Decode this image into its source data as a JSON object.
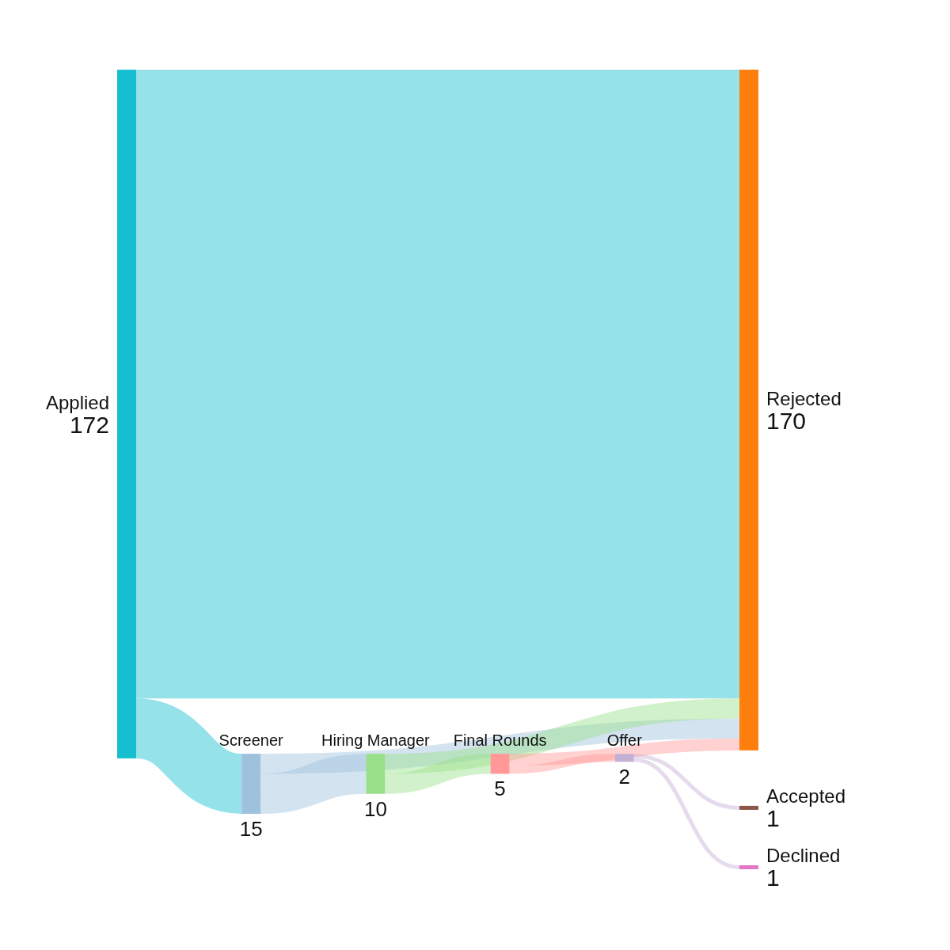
{
  "chart_data": {
    "type": "other",
    "categories": [
      "Applied",
      "Screener",
      "Hiring Manager",
      "Final Rounds",
      "Offer",
      "Accepted",
      "Declined",
      "Rejected"
    ],
    "values": [
      172,
      15,
      10,
      5,
      2,
      1,
      1,
      170
    ],
    "colors": [
      "#17becf",
      "#9ec1de",
      "#98df8a",
      "#ff9896",
      "#c5b0d5",
      "#8c564b",
      "#e377c2",
      "#ff7f0e"
    ],
    "data_labels": true
  }
}
